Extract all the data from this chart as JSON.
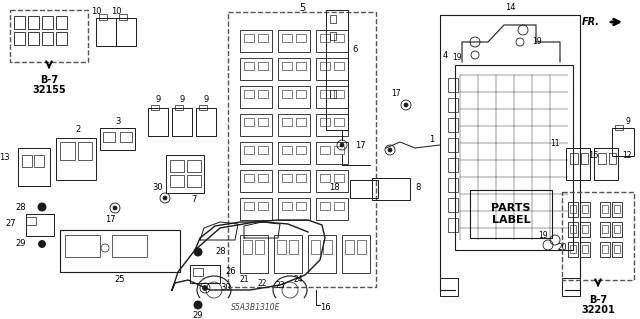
{
  "bg_color": "#ffffff",
  "line_color": "#1a1a1a",
  "figsize": [
    6.4,
    3.19
  ],
  "dpi": 100,
  "diagram_code": "S5A3B1310E",
  "fr_text": "FR.",
  "parts_label": "PARTS\nLABEL",
  "b7_32155": "B-7\n32155",
  "b7_32201": "B-7\n32201"
}
